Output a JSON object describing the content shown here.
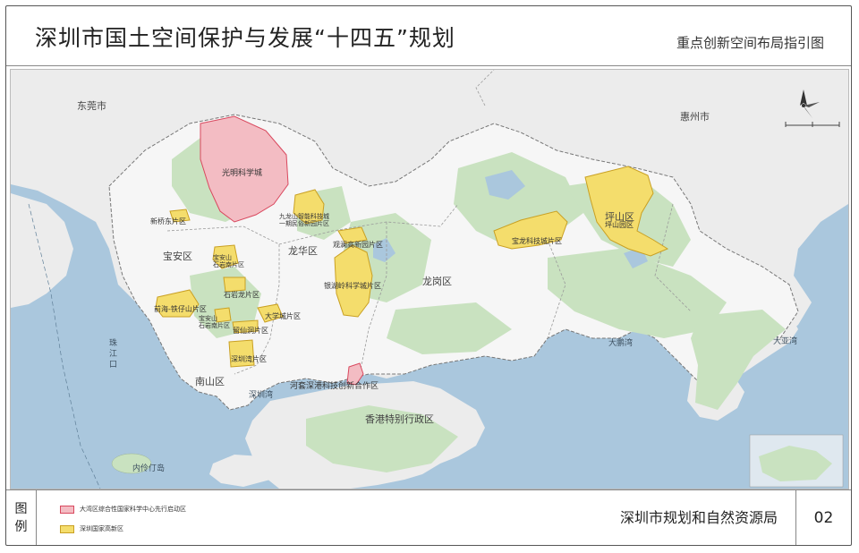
{
  "header": {
    "title": "深圳市国土空间保护与发展“十四五”规划",
    "subtitle": "重点创新空间布局指引图"
  },
  "map": {
    "regions": {
      "dongguan": "东莞市",
      "huizhou": "惠州市",
      "hongkong": "香港特别行政区"
    },
    "districts": {
      "baoan": "宝安区",
      "longhua": "龙华区",
      "longgang": "龙岗区",
      "pingshan": "坪山区",
      "nanshan": "南山区"
    },
    "water": {
      "zhujiangkou": "珠\n江\n口",
      "shenzhenwan": "深圳湾",
      "dapengwan": "大鹏湾",
      "dayawan": "大亚湾",
      "neilingding": "内伶仃岛"
    },
    "zones": {
      "guangming": "光明科学城",
      "xinqiaodong": "新桥东片区",
      "jiulongshan": "九龙山智能科技城\n一期民俗新园片区",
      "guanlan": "观澜高新园片区",
      "baoanzhonghe": "宝龙科技城片区",
      "pingshanpark": "坪山园区",
      "songgang1": "宝安山\n石岩南片区",
      "shiyan": "石岩龙片区",
      "qianhai": "前海-铁仔山片区",
      "nanshanliuxian": "宝安山\n石岩南片区",
      "dalang": "大学城片区",
      "liuxian": "留仙洞片区",
      "shenzhenwanpark": "深圳湾片区",
      "yinhu": "银湖岭科学城片区",
      "hetao": "河套深港科技创新合作区"
    }
  },
  "legend": {
    "title_top": "图",
    "title_bottom": "例",
    "items": [
      {
        "label": "大湾区综合性国家科学中心先行启动区",
        "color": "#e66a7a"
      },
      {
        "label": "深圳国家高新区",
        "color": "#e8c43a"
      }
    ]
  },
  "footer": {
    "agency": "深圳市规划和自然资源局",
    "page_number": "02"
  },
  "colors": {
    "sea": "#aac7dd",
    "land": "#ececec",
    "green": "#c9e2c0",
    "science_city": "#f3bcc3",
    "high_tech": "#f4dd6c"
  }
}
